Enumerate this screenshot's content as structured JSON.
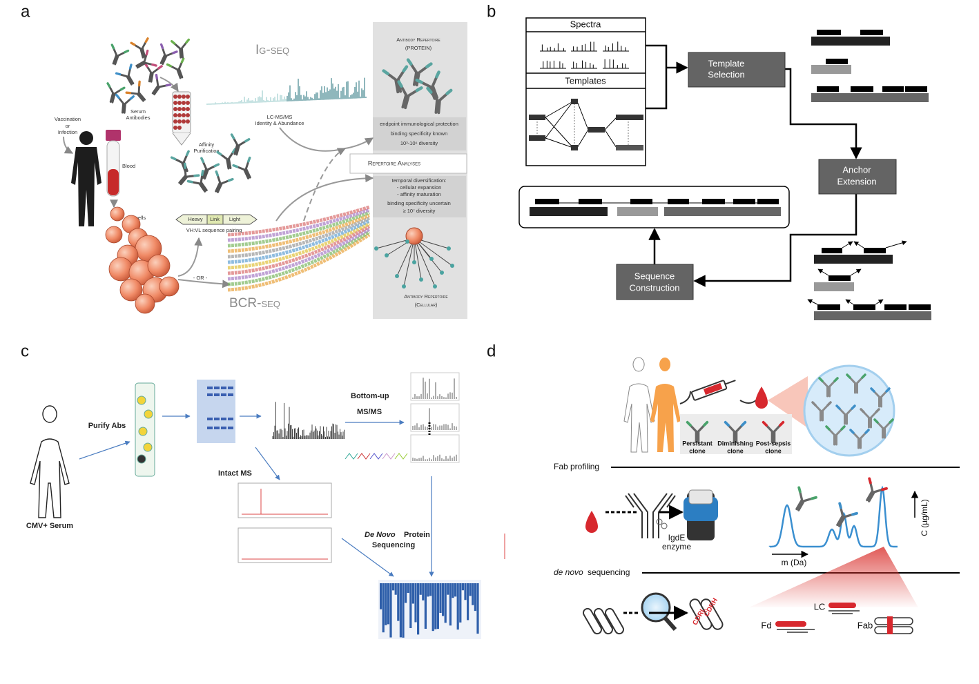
{
  "panel_a": {
    "label": "a",
    "ig_seq": "Ig-seq",
    "bcr_seq": "BCR-seq",
    "repertoire_protein": [
      "Antibody Repertoire",
      "(PROTEIN)"
    ],
    "vaccination": [
      "Vaccination",
      "or",
      "Infection"
    ],
    "serum": [
      "Serum",
      "Antibodies"
    ],
    "affinity": [
      "Affinity",
      "Purification"
    ],
    "lcms": [
      "LC-MS/MS",
      "Identity & Abundance"
    ],
    "blood": "Blood",
    "b_cells": "B cells",
    "pairing": {
      "segments": [
        "Heavy",
        "Link",
        "Light"
      ],
      "caption": "VH:VL sequence pairing"
    },
    "or": "- OR -",
    "protein_notes": [
      "endpoint immunological protection",
      "binding specificity known",
      "10³-10⁶ diversity"
    ],
    "analyses": "Repertoire Analyses",
    "cellular_notes": [
      "temporal diversification:",
      "-  cellular expansion",
      "-  affinity maturation",
      "binding specificity uncertain",
      "≥ 10⁷ diversity"
    ],
    "repertoire_cellular": [
      "Antibody Repertoire",
      "(Cellular)"
    ]
  },
  "panel_b": {
    "label": "b",
    "spectra": "Spectra",
    "templates": "Templates",
    "steps": [
      [
        "Template",
        "Selection"
      ],
      [
        "Anchor",
        "Extension"
      ],
      [
        "Sequence",
        "Construction"
      ]
    ]
  },
  "panel_c": {
    "label": "c",
    "purify": "Purify Abs",
    "serum": "CMV+ Serum",
    "bottom_up": [
      "Bottom-up",
      "MS/MS"
    ],
    "intact": "Intact MS",
    "de_novo": [
      "De Novo",
      "Protein",
      "Sequencing"
    ]
  },
  "panel_d": {
    "label": "d",
    "clones": [
      [
        "Persistant",
        "clone"
      ],
      [
        "Diminishing",
        "clone"
      ],
      [
        "Post-sepsis",
        "clone"
      ]
    ],
    "fab_profiling": "Fab profiling",
    "enzyme": [
      "IgdE",
      "enzyme"
    ],
    "x_axis": "m (Da)",
    "y_axis": "C (µg/mL)",
    "de_novo": [
      "de novo",
      "sequencing"
    ],
    "cdr": [
      "CDRH",
      "CDRL"
    ],
    "fragments": [
      "LC",
      "Fd",
      "Fab"
    ]
  }
}
